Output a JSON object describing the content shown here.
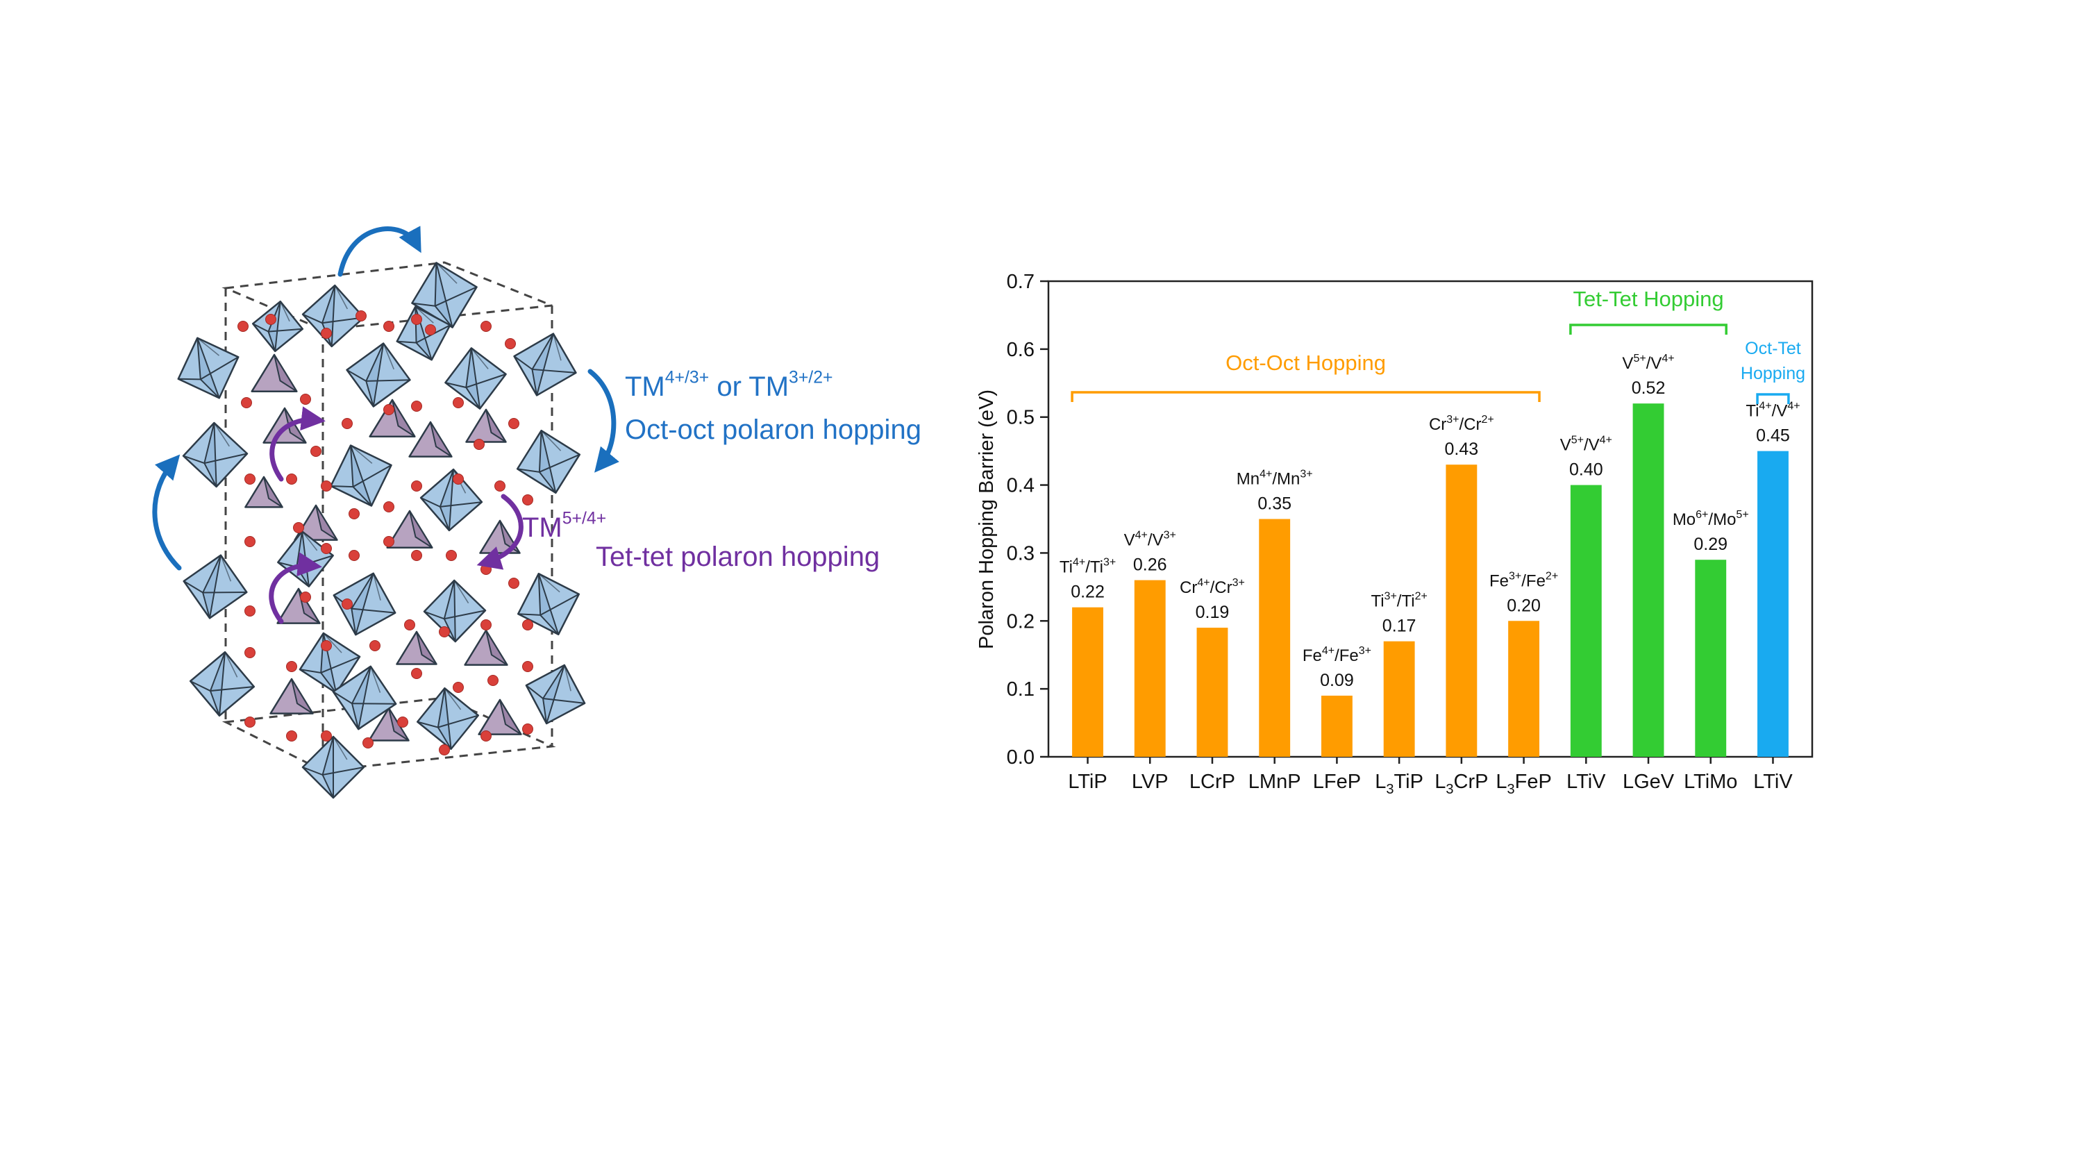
{
  "structure_annotations": {
    "oct_species_prefix_1": "TM",
    "oct_species_sup_1": "4+/3+",
    "oct_species_mid": " or TM",
    "oct_species_sup_2": "3+/2+",
    "oct_label": "Oct-oct polaron hopping",
    "tet_species_prefix": "TM",
    "tet_species_sup": "5+/4+",
    "tet_label": "Tet-tet polaron hopping"
  },
  "colors": {
    "octahedron": "#a8c8e4",
    "octahedron_edge": "#2d3b48",
    "tetrahedron": "#b7a3c0",
    "oxygen": "#d9403a",
    "oct_arrow": "#1a6fbd",
    "tet_arrow": "#7030a0",
    "oct_oct_bars": "#ff9c00",
    "tet_tet_bars": "#33cc33",
    "oct_tet_bars": "#19aaf0"
  },
  "chart_data": {
    "type": "bar",
    "ylabel": "Polaron Hopping Barrier (eV)",
    "ylim": [
      0,
      0.7
    ],
    "yticks": [
      "0.0",
      "0.1",
      "0.2",
      "0.3",
      "0.4",
      "0.5",
      "0.6",
      "0.7"
    ],
    "categories": [
      "LTiP",
      "LVP",
      "LCrP",
      "LMnP",
      "LFeP",
      "L3TiP",
      "L3CrP",
      "L3FeP",
      "LTiV",
      "LGeV",
      "LTiMo",
      "LTiV"
    ],
    "category_labels": [
      {
        "pre": "LTiP",
        "sub": "",
        "post": ""
      },
      {
        "pre": "LVP",
        "sub": "",
        "post": ""
      },
      {
        "pre": "LCrP",
        "sub": "",
        "post": ""
      },
      {
        "pre": "LMnP",
        "sub": "",
        "post": ""
      },
      {
        "pre": "LFeP",
        "sub": "",
        "post": ""
      },
      {
        "pre": "L",
        "sub": "3",
        "post": "TiP"
      },
      {
        "pre": "L",
        "sub": "3",
        "post": "CrP"
      },
      {
        "pre": "L",
        "sub": "3",
        "post": "FeP"
      },
      {
        "pre": "LTiV",
        "sub": "",
        "post": ""
      },
      {
        "pre": "LGeV",
        "sub": "",
        "post": ""
      },
      {
        "pre": "LTiMo",
        "sub": "",
        "post": ""
      },
      {
        "pre": "LTiV",
        "sub": "",
        "post": ""
      }
    ],
    "values": [
      0.22,
      0.26,
      0.19,
      0.35,
      0.09,
      0.17,
      0.43,
      0.2,
      0.4,
      0.52,
      0.29,
      0.45
    ],
    "value_labels": [
      "0.22",
      "0.26",
      "0.19",
      "0.35",
      "0.09",
      "0.17",
      "0.43",
      "0.20",
      "0.40",
      "0.52",
      "0.29",
      "0.45"
    ],
    "couple_labels": [
      {
        "a": "Ti",
        "as": "4+",
        "b": "/Ti",
        "bs": "3+"
      },
      {
        "a": "V",
        "as": "4+",
        "b": "/V",
        "bs": "3+"
      },
      {
        "a": "Cr",
        "as": "4+",
        "b": "/Cr",
        "bs": "3+"
      },
      {
        "a": "Mn",
        "as": "4+",
        "b": "/Mn",
        "bs": "3+"
      },
      {
        "a": "Fe",
        "as": "4+",
        "b": "/Fe",
        "bs": "3+"
      },
      {
        "a": "Ti",
        "as": "3+",
        "b": "/Ti",
        "bs": "2+"
      },
      {
        "a": "Cr",
        "as": "3+",
        "b": "/Cr",
        "bs": "2+"
      },
      {
        "a": "Fe",
        "as": "3+",
        "b": "/Fe",
        "bs": "2+"
      },
      {
        "a": "V",
        "as": "5+",
        "b": "/V",
        "bs": "4+"
      },
      {
        "a": "V",
        "as": "5+",
        "b": "/V",
        "bs": "4+"
      },
      {
        "a": "Mo",
        "as": "6+",
        "b": "/Mo",
        "bs": "5+"
      },
      {
        "a": "Ti",
        "as": "4+",
        "b": "/V",
        "bs": "4+"
      }
    ],
    "groups": [
      {
        "name": "Oct-Oct Hopping",
        "lines": [
          "Oct-Oct Hopping"
        ],
        "color": "#ff9c00",
        "start": 0,
        "end": 7
      },
      {
        "name": "Tet-Tet Hopping",
        "lines": [
          "Tet-Tet Hopping"
        ],
        "color": "#33cc33",
        "start": 8,
        "end": 10
      },
      {
        "name": "Oct-Tet Hopping",
        "lines": [
          "Oct-Tet",
          "Hopping"
        ],
        "color": "#19aaf0",
        "start": 11,
        "end": 11
      }
    ],
    "legend": "none",
    "grid": false
  }
}
